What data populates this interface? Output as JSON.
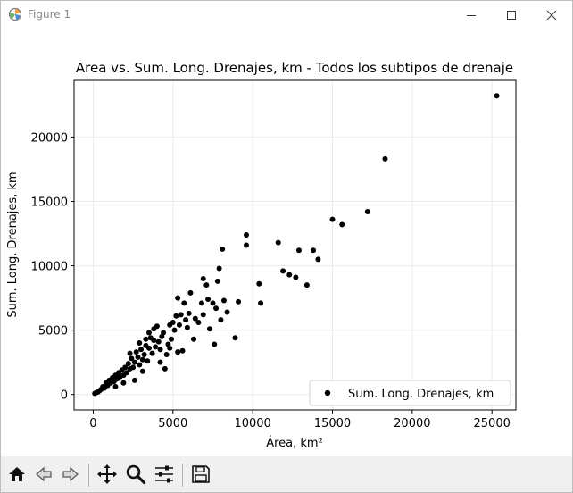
{
  "window": {
    "title": "Figure 1",
    "controls": [
      "minimize",
      "maximize",
      "close"
    ]
  },
  "chart_data": {
    "type": "scatter",
    "title": "Area vs. Sum. Long. Drenajes, km - Todos los subtipos de drenaje",
    "xlabel": "Área, km²",
    "ylabel": "Sum. Long. Drenajes, km",
    "xlim": [
      -1200,
      26500
    ],
    "ylim": [
      -1200,
      24400
    ],
    "xticks": [
      0,
      5000,
      10000,
      15000,
      20000,
      25000
    ],
    "yticks": [
      0,
      5000,
      10000,
      15000,
      20000
    ],
    "grid": true,
    "legend": "lower-right",
    "series": [
      {
        "name": "Sum. Long. Drenajes, km",
        "color": "#000000",
        "points": [
          [
            25300,
            23200
          ],
          [
            18300,
            18300
          ],
          [
            17200,
            14200
          ],
          [
            15000,
            13600
          ],
          [
            15600,
            13200
          ],
          [
            14100,
            10500
          ],
          [
            13800,
            11200
          ],
          [
            13400,
            8500
          ],
          [
            12900,
            11200
          ],
          [
            12700,
            9100
          ],
          [
            12300,
            9300
          ],
          [
            11900,
            9600
          ],
          [
            11600,
            11800
          ],
          [
            10500,
            7100
          ],
          [
            10400,
            8600
          ],
          [
            9600,
            12400
          ],
          [
            9600,
            11600
          ],
          [
            8900,
            4400
          ],
          [
            8100,
            11300
          ],
          [
            8000,
            5800
          ],
          [
            7900,
            9800
          ],
          [
            7800,
            8800
          ],
          [
            7700,
            6700
          ],
          [
            7500,
            7100
          ],
          [
            7300,
            5100
          ],
          [
            7100,
            8500
          ],
          [
            6900,
            9000
          ],
          [
            6800,
            7100
          ],
          [
            6600,
            5600
          ],
          [
            6300,
            4300
          ],
          [
            6100,
            7900
          ],
          [
            6000,
            6300
          ],
          [
            5900,
            5200
          ],
          [
            5800,
            5800
          ],
          [
            5700,
            7100
          ],
          [
            5500,
            6200
          ],
          [
            5400,
            5400
          ],
          [
            5300,
            7500
          ],
          [
            5200,
            6100
          ],
          [
            5100,
            5000
          ],
          [
            5000,
            5600
          ],
          [
            4900,
            4300
          ],
          [
            4800,
            5400
          ],
          [
            4700,
            3900
          ],
          [
            4600,
            3100
          ],
          [
            4500,
            2000
          ],
          [
            4400,
            4800
          ],
          [
            4300,
            4500
          ],
          [
            4200,
            3500
          ],
          [
            4100,
            4100
          ],
          [
            4000,
            5300
          ],
          [
            3900,
            3700
          ],
          [
            3800,
            4200
          ],
          [
            3700,
            3200
          ],
          [
            3600,
            4400
          ],
          [
            3500,
            4800
          ],
          [
            3400,
            2600
          ],
          [
            3300,
            3800
          ],
          [
            3200,
            3100
          ],
          [
            3100,
            2700
          ],
          [
            3000,
            3500
          ],
          [
            2900,
            2300
          ],
          [
            2800,
            2900
          ],
          [
            2700,
            3300
          ],
          [
            2600,
            2500
          ],
          [
            2500,
            2100
          ],
          [
            2400,
            2800
          ],
          [
            2300,
            2000
          ],
          [
            2200,
            2400
          ],
          [
            2100,
            1700
          ],
          [
            2000,
            2100
          ],
          [
            1900,
            1500
          ],
          [
            1800,
            1900
          ],
          [
            1700,
            1400
          ],
          [
            1600,
            1700
          ],
          [
            1500,
            1200
          ],
          [
            1400,
            1500
          ],
          [
            1300,
            1000
          ],
          [
            1200,
            1300
          ],
          [
            1100,
            900
          ],
          [
            1000,
            1100
          ],
          [
            900,
            700
          ],
          [
            800,
            900
          ],
          [
            700,
            500
          ],
          [
            600,
            600
          ],
          [
            500,
            400
          ],
          [
            400,
            300
          ],
          [
            300,
            200
          ],
          [
            200,
            150
          ],
          [
            100,
            80
          ],
          [
            3500,
            3600
          ],
          [
            4200,
            2500
          ],
          [
            5600,
            3400
          ],
          [
            6400,
            5900
          ],
          [
            7200,
            7400
          ],
          [
            8200,
            7300
          ],
          [
            8400,
            6400
          ],
          [
            9100,
            7200
          ],
          [
            7600,
            3900
          ],
          [
            6900,
            6200
          ],
          [
            5300,
            3300
          ],
          [
            4800,
            3600
          ],
          [
            3100,
            1800
          ],
          [
            2600,
            1100
          ],
          [
            1900,
            900
          ],
          [
            1400,
            600
          ],
          [
            2300,
            3200
          ],
          [
            2900,
            4000
          ],
          [
            3300,
            4300
          ],
          [
            3800,
            5100
          ]
        ]
      }
    ]
  },
  "toolbar": {
    "buttons": [
      "home",
      "back",
      "forward",
      "pan",
      "zoom",
      "configure-subplots",
      "save"
    ]
  }
}
